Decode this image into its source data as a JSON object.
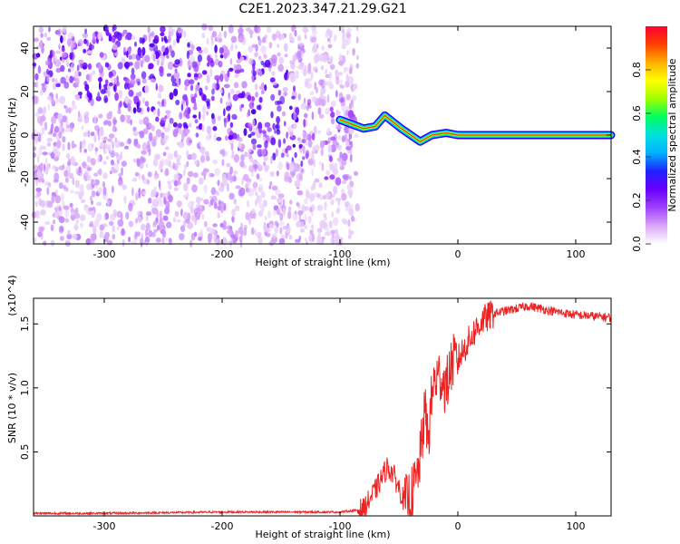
{
  "chart_data": [
    {
      "type": "heatmap",
      "title": "C2E1.2023.347.21.29.G21",
      "xlabel": "Height of straight line (km)",
      "ylabel": "Frequency (Hz)",
      "xlim": [
        -360,
        130
      ],
      "ylim": [
        -50,
        50
      ],
      "xticks": [
        -300,
        -200,
        -100,
        0,
        100
      ],
      "yticks": [
        -40,
        -20,
        0,
        20,
        40
      ],
      "colorbar": {
        "label": "Normalized spectral amplitude",
        "range": [
          0.0,
          1.0
        ],
        "ticks": [
          0.0,
          0.2,
          0.4,
          0.6,
          0.8
        ],
        "tick_labels": [
          "0.0",
          "0.2",
          "0.4",
          "0.6",
          "0.8"
        ],
        "colormap": [
          "#ffffff",
          "#d9a6f7",
          "#a040ff",
          "#6a00ff",
          "#2020ff",
          "#00b0ff",
          "#00e0e0",
          "#00ff60",
          "#a0ff00",
          "#ffff00",
          "#ffb000",
          "#ff4000",
          "#ff0030"
        ]
      },
      "features": {
        "noise_region_x": [
          -360,
          -100
        ],
        "signal_center_hz": [
          [
            -100,
            7
          ],
          [
            -90,
            5
          ],
          [
            -80,
            3
          ],
          [
            -70,
            4
          ],
          [
            -62,
            9
          ],
          [
            -55,
            6
          ],
          [
            -48,
            3
          ],
          [
            -40,
            0
          ],
          [
            -32,
            -3
          ],
          [
            -22,
            0
          ],
          [
            -10,
            1
          ],
          [
            0,
            0
          ],
          [
            10,
            0
          ],
          [
            130,
            0
          ]
        ],
        "strong_band_start_x": 0
      },
      "grid": false,
      "legend": "none"
    },
    {
      "type": "line",
      "xlabel": "Height of straight line (km)",
      "ylabel": "SNR (10 * v/v)",
      "y_multiplier": "(x10^4)",
      "xlim": [
        -360,
        130
      ],
      "ylim": [
        0,
        1.7
      ],
      "xticks": [
        -300,
        -200,
        -100,
        0,
        100
      ],
      "yticks": [
        0.5,
        1.0,
        1.5
      ],
      "ytick_labels": [
        "0.5",
        "1.0",
        "1.5"
      ],
      "series": [
        {
          "color": "#ee2222",
          "x": [
            -360,
            -300,
            -200,
            -100,
            -80,
            -70,
            -60,
            -55,
            -50,
            -45,
            -40,
            -35,
            -32,
            -28,
            -25,
            -22,
            -20,
            -15,
            -10,
            -5,
            0,
            10,
            20,
            30,
            40,
            60,
            80,
            100,
            130
          ],
          "y": [
            0.02,
            0.02,
            0.03,
            0.03,
            0.05,
            0.2,
            0.38,
            0.33,
            0.22,
            0.1,
            0.15,
            0.28,
            0.45,
            0.82,
            0.6,
            0.95,
            1.05,
            1.1,
            1.0,
            1.2,
            1.22,
            1.38,
            1.52,
            1.58,
            1.6,
            1.64,
            1.6,
            1.57,
            1.55
          ]
        }
      ],
      "grid": false,
      "legend": "none"
    }
  ]
}
